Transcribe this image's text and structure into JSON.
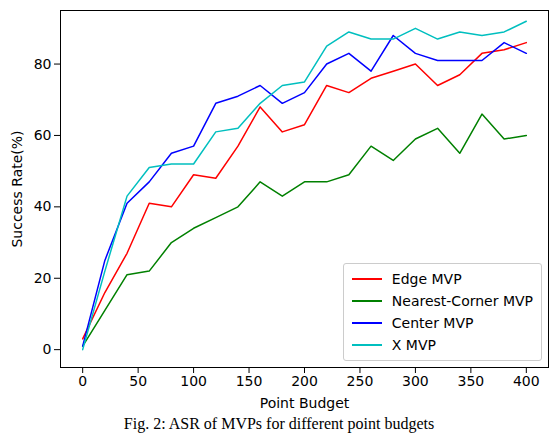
{
  "chart_data": {
    "type": "line",
    "caption": "Fig. 2: ASR of MVPs for different point budgets",
    "x_label": "Point Budget",
    "y_label": "Success Rate(%)",
    "x": [
      0,
      20,
      40,
      60,
      80,
      100,
      120,
      140,
      160,
      180,
      200,
      220,
      240,
      260,
      280,
      300,
      320,
      340,
      360,
      380,
      400
    ],
    "series": [
      {
        "name": "Edge MVP",
        "color": "#ff0000",
        "values": [
          3,
          16,
          27,
          41,
          40,
          49,
          48,
          57,
          68,
          61,
          63,
          74,
          72,
          76,
          78,
          80,
          74,
          77,
          83,
          84,
          86
        ]
      },
      {
        "name": "Nearest-Corner MVP",
        "color": "#008000",
        "values": [
          1,
          11,
          21,
          22,
          30,
          34,
          37,
          40,
          47,
          43,
          47,
          47,
          49,
          57,
          53,
          59,
          62,
          55,
          66,
          59,
          60
        ]
      },
      {
        "name": "Center MVP",
        "color": "#0000ff",
        "values": [
          1,
          25,
          41,
          47,
          55,
          57,
          69,
          71,
          74,
          69,
          72,
          80,
          83,
          78,
          88,
          83,
          81,
          81,
          81,
          86,
          83
        ]
      },
      {
        "name": "X MVP",
        "color": "#00bfbf",
        "values": [
          0,
          22,
          43,
          51,
          52,
          52,
          61,
          62,
          69,
          74,
          75,
          85,
          89,
          87,
          87,
          90,
          87,
          89,
          88,
          89,
          92
        ]
      }
    ],
    "xlim": [
      -20,
      420
    ],
    "xticks": [
      0,
      50,
      100,
      150,
      200,
      250,
      300,
      350,
      400
    ],
    "ylim": [
      -5,
      95
    ],
    "yticks": [
      0,
      20,
      40,
      60,
      80
    ],
    "legend": "lower right",
    "grid": false
  }
}
